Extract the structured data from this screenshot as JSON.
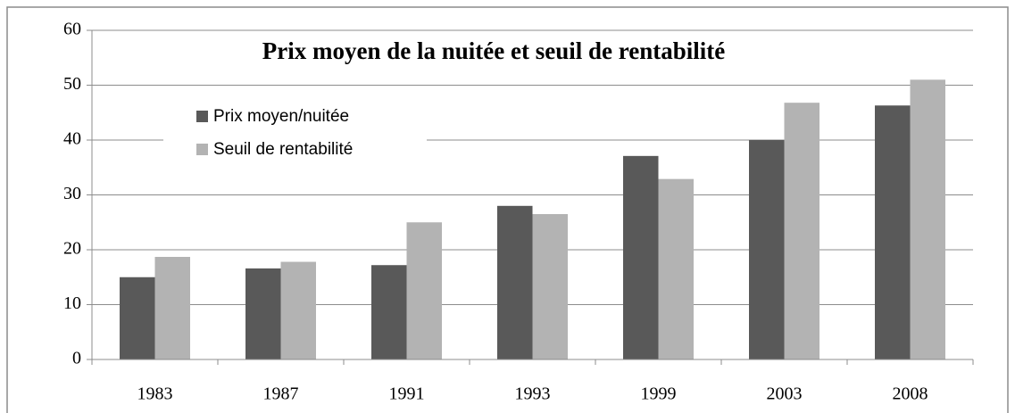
{
  "chart_data": {
    "type": "bar",
    "title": "Prix moyen de la nuitée et seuil de rentabilité",
    "categories": [
      "1983",
      "1987",
      "1991",
      "1993",
      "1999",
      "2003",
      "2008"
    ],
    "series": [
      {
        "name": "Prix moyen/nuitée",
        "color": "#595959",
        "values": [
          15,
          16.6,
          17.2,
          28,
          37.1,
          40,
          46.3
        ]
      },
      {
        "name": "Seuil de rentabilité",
        "color": "#b3b3b3",
        "values": [
          18.7,
          17.8,
          25,
          26.5,
          32.9,
          46.8,
          51
        ]
      }
    ],
    "ylim": [
      0,
      60
    ],
    "yticks": [
      0,
      10,
      20,
      30,
      40,
      50,
      60
    ],
    "grid": true,
    "legend": "upper-left"
  }
}
